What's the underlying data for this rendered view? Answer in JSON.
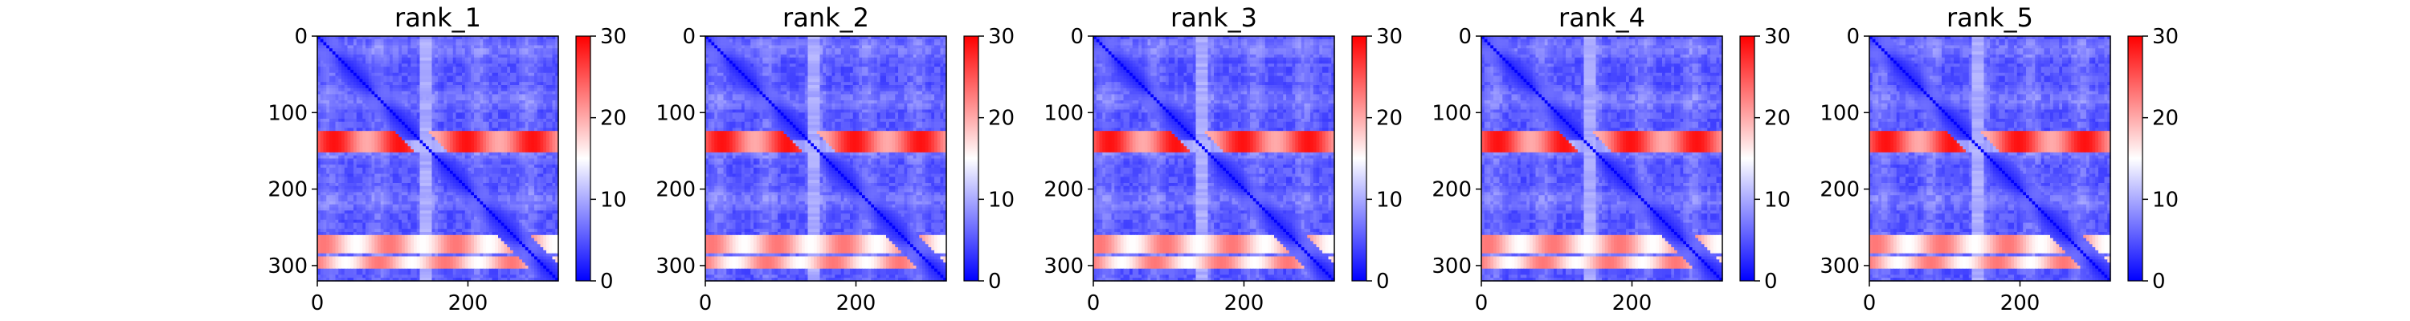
{
  "chart_data": [
    {
      "type": "heatmap",
      "title": "rank_1",
      "x_ticks": [
        0,
        200
      ],
      "y_ticks": [
        0,
        100,
        200,
        300
      ],
      "xlim": [
        0,
        320
      ],
      "ylim": [
        320,
        0
      ],
      "colorbar": {
        "ticks": [
          0,
          10,
          20,
          30
        ],
        "range": [
          0,
          30
        ],
        "colors": [
          "#0000ff",
          "#ffffff",
          "#ff0000"
        ]
      },
      "hot_bands": [
        [
          125,
          150
        ],
        [
          260,
          285
        ],
        [
          290,
          305
        ]
      ],
      "light_stripes": [
        135,
        150
      ],
      "diagonal_value": 0,
      "background_value": 5
    },
    {
      "type": "heatmap",
      "title": "rank_2",
      "x_ticks": [
        0,
        200
      ],
      "y_ticks": [
        0,
        100,
        200,
        300
      ],
      "xlim": [
        0,
        320
      ],
      "ylim": [
        320,
        0
      ],
      "colorbar": {
        "ticks": [
          0,
          10,
          20,
          30
        ],
        "range": [
          0,
          30
        ],
        "colors": [
          "#0000ff",
          "#ffffff",
          "#ff0000"
        ]
      },
      "hot_bands": [
        [
          125,
          150
        ],
        [
          260,
          285
        ],
        [
          290,
          305
        ]
      ],
      "light_stripes": [
        135,
        150
      ],
      "diagonal_value": 0,
      "background_value": 5
    },
    {
      "type": "heatmap",
      "title": "rank_3",
      "x_ticks": [
        0,
        200
      ],
      "y_ticks": [
        0,
        100,
        200,
        300
      ],
      "xlim": [
        0,
        320
      ],
      "ylim": [
        320,
        0
      ],
      "colorbar": {
        "ticks": [
          0,
          10,
          20,
          30
        ],
        "range": [
          0,
          30
        ],
        "colors": [
          "#0000ff",
          "#ffffff",
          "#ff0000"
        ]
      },
      "hot_bands": [
        [
          125,
          150
        ],
        [
          260,
          285
        ],
        [
          290,
          305
        ]
      ],
      "light_stripes": [
        135,
        150
      ],
      "diagonal_value": 0,
      "background_value": 5
    },
    {
      "type": "heatmap",
      "title": "rank_4",
      "x_ticks": [
        0,
        200
      ],
      "y_ticks": [
        0,
        100,
        200,
        300
      ],
      "xlim": [
        0,
        320
      ],
      "ylim": [
        320,
        0
      ],
      "colorbar": {
        "ticks": [
          0,
          10,
          20,
          30
        ],
        "range": [
          0,
          30
        ],
        "colors": [
          "#0000ff",
          "#ffffff",
          "#ff0000"
        ]
      },
      "hot_bands": [
        [
          125,
          150
        ],
        [
          260,
          285
        ],
        [
          290,
          305
        ]
      ],
      "light_stripes": [
        135,
        150
      ],
      "diagonal_value": 0,
      "background_value": 5
    },
    {
      "type": "heatmap",
      "title": "rank_5",
      "x_ticks": [
        0,
        200
      ],
      "y_ticks": [
        0,
        100,
        200,
        300
      ],
      "xlim": [
        0,
        320
      ],
      "ylim": [
        320,
        0
      ],
      "colorbar": {
        "ticks": [
          0,
          10,
          20,
          30
        ],
        "range": [
          0,
          30
        ],
        "colors": [
          "#0000ff",
          "#ffffff",
          "#ff0000"
        ]
      },
      "hot_bands": [
        [
          125,
          150
        ],
        [
          260,
          285
        ],
        [
          290,
          305
        ]
      ],
      "light_stripes": [
        135,
        150
      ],
      "diagonal_value": 0,
      "background_value": 5
    }
  ]
}
